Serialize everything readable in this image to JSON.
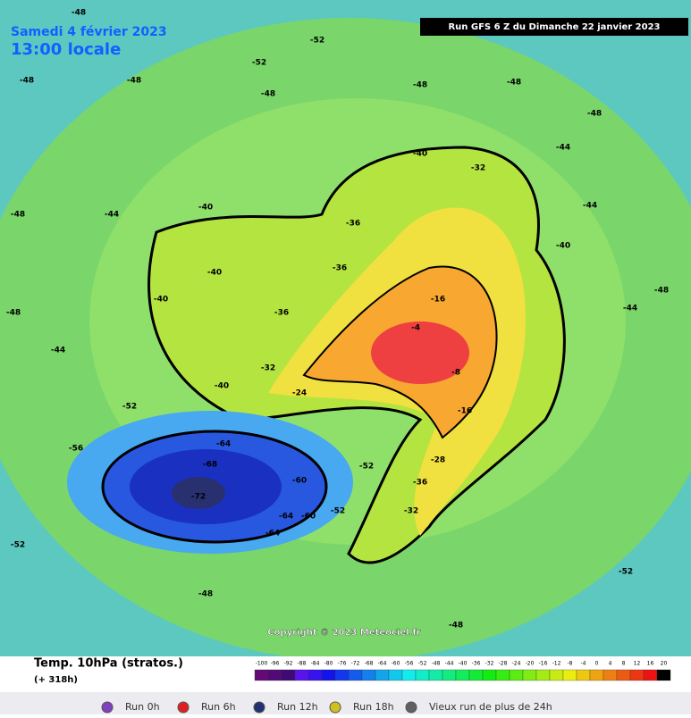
{
  "header": {
    "date": "Samedi 4 février 2023",
    "time": "13:00 locale",
    "run": "Run GFS 6 Z du Dimanche 22 janvier 2023"
  },
  "map": {
    "copyright": "Copyright © 2023 Meteociel.fr",
    "labels": [
      "-48",
      "-48",
      "-48",
      "-48",
      "-48",
      "-48",
      "-48",
      "-48",
      "-48",
      "-48",
      "-52",
      "-52",
      "-44",
      "-44",
      "-44",
      "-44",
      "-44",
      "-40",
      "-40",
      "-40",
      "-40",
      "-40",
      "-40",
      "-36",
      "-36",
      "-36",
      "-32",
      "-32",
      "-24",
      "-16",
      "-4",
      "-8",
      "-16",
      "-52",
      "-56",
      "-64",
      "-68",
      "-72",
      "-60",
      "-64",
      "-64",
      "-60",
      "-52",
      "-52",
      "-28",
      "-36",
      "-32",
      "-52",
      "-48",
      "-48",
      "-52"
    ]
  },
  "legend": {
    "title": "Temp. 10hPa (stratos.)",
    "lead": "(+ 318h)",
    "scale": [
      -100,
      -96,
      -92,
      -88,
      -84,
      -80,
      -76,
      -72,
      -68,
      -64,
      -60,
      -56,
      -52,
      -48,
      -44,
      -40,
      -36,
      -32,
      -28,
      -24,
      -20,
      -16,
      -12,
      -8,
      -4,
      0,
      4,
      8,
      12,
      16,
      20
    ]
  },
  "runs": [
    "Run 0h",
    "Run 6h",
    "Run 12h",
    "Run 18h",
    "Vieux run de plus de 24h"
  ]
}
